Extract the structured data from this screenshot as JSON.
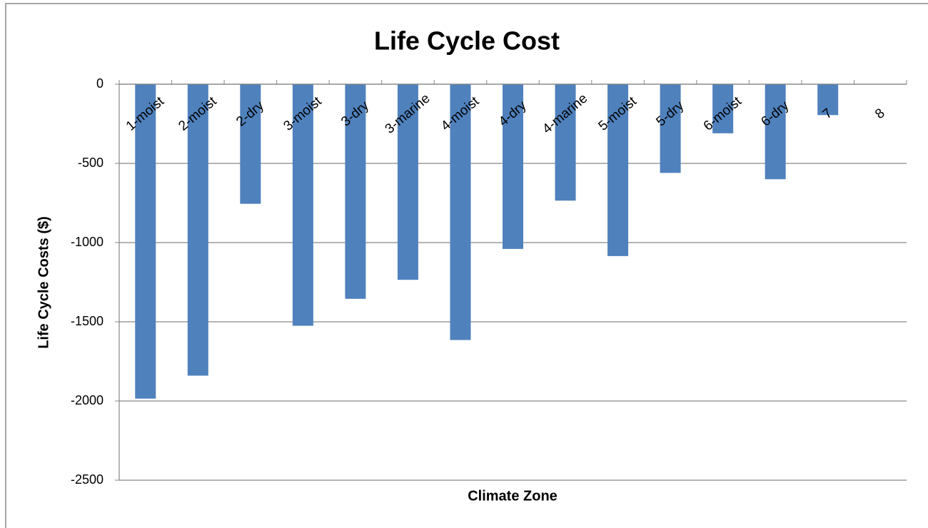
{
  "chart_data": {
    "type": "bar",
    "title": "Life Cycle Cost",
    "x_label": "Climate Zone",
    "y_label": "Life Cycle Costs ($)",
    "categories": [
      "1-moist",
      "2-moist",
      "2-dry",
      "3-moist",
      "3-dry",
      "3-marine",
      "4-moist",
      "4-dry",
      "4-marine",
      "5-moist",
      "5-dry",
      "6-moist",
      "6-dry",
      "7",
      "8"
    ],
    "values": [
      -1985,
      -1840,
      -755,
      -1525,
      -1355,
      -1235,
      -1615,
      -1040,
      -735,
      -1085,
      -560,
      -310,
      -600,
      -195,
      0
    ],
    "color": "#4f81bd",
    "ylim": [
      -2500,
      0
    ],
    "yticks": [
      0,
      -500,
      -1000,
      -1500,
      -2000,
      -2500
    ],
    "grid": true
  }
}
